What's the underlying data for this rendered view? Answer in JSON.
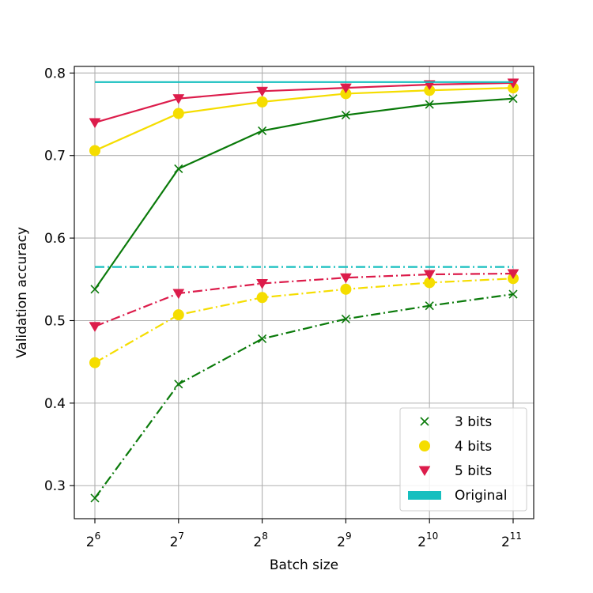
{
  "chart_data": {
    "type": "line",
    "xlabel": "Batch size",
    "ylabel": "Validation accuracy",
    "x_tick_base": "2",
    "x_exponents": [
      "6",
      "7",
      "8",
      "9",
      "10",
      "11"
    ],
    "x": [
      64,
      128,
      256,
      512,
      1024,
      2048
    ],
    "x_scale": "log2",
    "ylim": [
      0.26,
      0.808
    ],
    "y_ticks": [
      "0.3",
      "0.4",
      "0.5",
      "0.6",
      "0.7",
      "0.8"
    ],
    "grid": true,
    "legend_position": "bottom-right",
    "colors": {
      "3 bits": "#0a7a0a",
      "4 bits": "#f5dd00",
      "5 bits": "#dc1c4b",
      "Original": "#17bfbf"
    },
    "series": [
      {
        "name": "3 bits",
        "group": "solid",
        "marker": "x",
        "values": [
          0.538,
          0.684,
          0.73,
          0.749,
          0.762,
          0.769
        ]
      },
      {
        "name": "4 bits",
        "group": "solid",
        "marker": "o",
        "values": [
          0.706,
          0.751,
          0.765,
          0.775,
          0.779,
          0.782
        ]
      },
      {
        "name": "5 bits",
        "group": "solid",
        "marker": "v",
        "values": [
          0.74,
          0.769,
          0.778,
          0.782,
          0.786,
          0.788
        ]
      },
      {
        "name": "Original",
        "group": "solid",
        "marker": "none",
        "values": [
          0.789,
          0.789,
          0.789,
          0.789,
          0.789,
          0.789
        ]
      },
      {
        "name": "3 bits",
        "group": "dashdot",
        "marker": "x",
        "values": [
          0.285,
          0.423,
          0.478,
          0.502,
          0.518,
          0.532
        ]
      },
      {
        "name": "4 bits",
        "group": "dashdot",
        "marker": "o",
        "values": [
          0.449,
          0.507,
          0.528,
          0.538,
          0.546,
          0.551
        ]
      },
      {
        "name": "5 bits",
        "group": "dashdot",
        "marker": "v",
        "values": [
          0.493,
          0.533,
          0.545,
          0.552,
          0.556,
          0.557
        ]
      },
      {
        "name": "Original",
        "group": "dashdot",
        "marker": "none",
        "values": [
          0.565,
          0.565,
          0.565,
          0.565,
          0.565,
          0.565
        ]
      }
    ],
    "legend": [
      "3 bits",
      "4 bits",
      "5 bits",
      "Original"
    ]
  }
}
